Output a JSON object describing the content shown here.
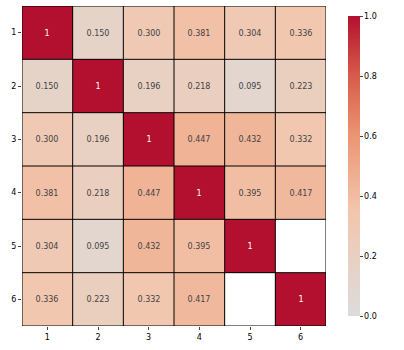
{
  "chart_data": {
    "type": "heatmap",
    "x": [
      "1",
      "2",
      "3",
      "4",
      "5",
      "6"
    ],
    "y": [
      "1",
      "2",
      "3",
      "4",
      "5",
      "6"
    ],
    "z": [
      [
        1,
        0.15,
        0.3,
        0.381,
        0.304,
        0.336
      ],
      [
        0.15,
        1,
        0.196,
        0.218,
        0.095,
        0.223
      ],
      [
        0.3,
        0.196,
        1,
        0.447,
        0.432,
        0.332
      ],
      [
        0.381,
        0.218,
        0.447,
        1,
        0.395,
        0.417
      ],
      [
        0.304,
        0.095,
        0.432,
        0.395,
        1,
        null
      ],
      [
        0.336,
        0.223,
        0.332,
        0.417,
        null,
        1
      ]
    ],
    "value_labels": [
      [
        "1",
        "0.150",
        "0.300",
        "0.381",
        "0.304",
        "0.336"
      ],
      [
        "0.150",
        "1",
        "0.196",
        "0.218",
        "0.095",
        "0.223"
      ],
      [
        "0.300",
        "0.196",
        "1",
        "0.447",
        "0.432",
        "0.332"
      ],
      [
        "0.381",
        "0.218",
        "0.447",
        "1",
        "0.395",
        "0.417"
      ],
      [
        "0.304",
        "0.095",
        "0.432",
        "0.395",
        "1",
        null
      ],
      [
        "0.336",
        "0.223",
        "0.332",
        "0.417",
        null,
        "1"
      ]
    ],
    "data_labels": true,
    "colorbar": {
      "range": [
        0,
        1
      ],
      "ticks": [
        {
          "value": 0,
          "label": "0.0"
        },
        {
          "value": 0.2,
          "label": "0.2"
        },
        {
          "value": 0.4,
          "label": "0.4"
        },
        {
          "value": 0.6,
          "label": "0.6"
        },
        {
          "value": 0.8,
          "label": "0.8"
        },
        {
          "value": 1,
          "label": "1.0"
        }
      ]
    }
  }
}
